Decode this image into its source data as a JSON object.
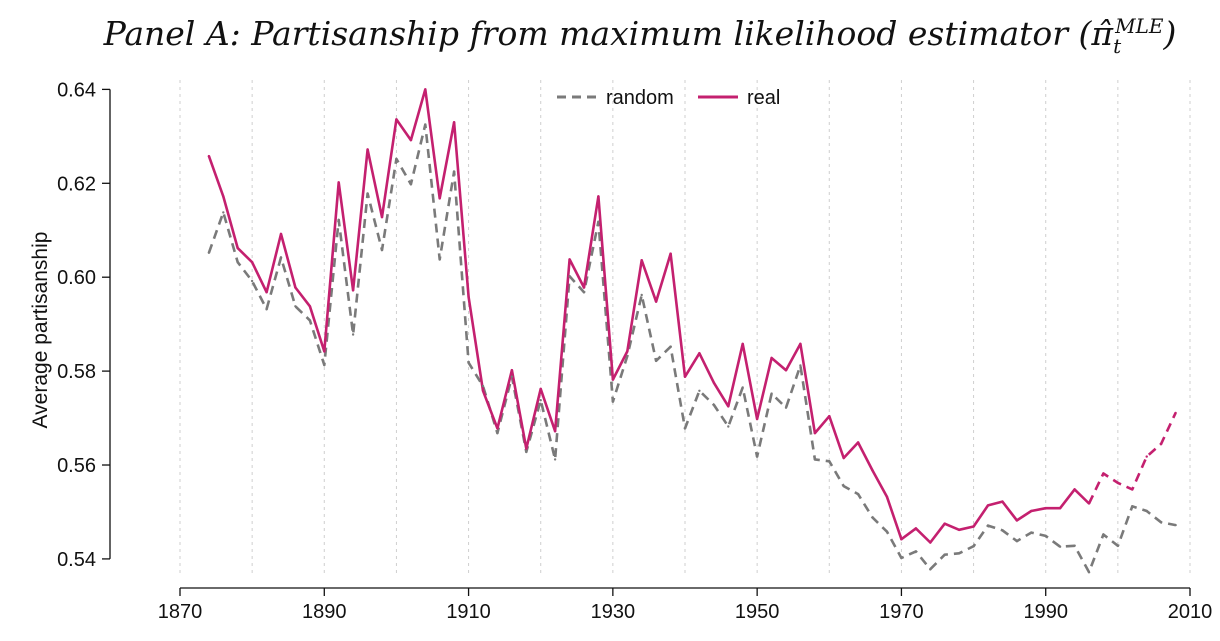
{
  "chart_data": {
    "type": "line",
    "title": "Panel A: Partisanship from maximum likelihood estimator (",
    "title_symbol": "π̂",
    "title_sub": "t",
    "title_sup": "MLE",
    "title_close": ")",
    "xlabel": "",
    "ylabel": "Average partisanship",
    "xlim": [
      1870,
      2010
    ],
    "ylim": [
      0.537,
      0.642
    ],
    "xticks": [
      1870,
      1890,
      1910,
      1930,
      1950,
      1970,
      1990,
      2010
    ],
    "yticks": [
      0.54,
      0.56,
      0.58,
      0.6,
      0.62,
      0.64
    ],
    "ytick_labels": [
      "0.54",
      "0.56",
      "0.58",
      "0.60",
      "0.62",
      "0.64"
    ],
    "vgrid": [
      1870,
      1880,
      1890,
      1900,
      1910,
      1920,
      1930,
      1940,
      1950,
      1960,
      1970,
      1980,
      1990,
      2000,
      2010
    ],
    "grid": "vertical-dotted",
    "legend_position": "top-center",
    "x": [
      1874,
      1876,
      1878,
      1880,
      1882,
      1884,
      1886,
      1888,
      1890,
      1892,
      1894,
      1896,
      1898,
      1900,
      1902,
      1904,
      1906,
      1908,
      1910,
      1912,
      1914,
      1916,
      1918,
      1920,
      1922,
      1924,
      1926,
      1928,
      1930,
      1932,
      1934,
      1936,
      1938,
      1940,
      1942,
      1944,
      1946,
      1948,
      1950,
      1952,
      1954,
      1956,
      1958,
      1960,
      1962,
      1964,
      1966,
      1968,
      1970,
      1972,
      1974,
      1976,
      1978,
      1980,
      1982,
      1984,
      1986,
      1988,
      1990,
      1992,
      1994,
      1996,
      1998,
      2000,
      2002,
      2004,
      2006,
      2008
    ],
    "series": [
      {
        "name": "random",
        "color": "#7a7a7a",
        "style": "dashed",
        "values": [
          0.6052,
          0.6138,
          0.6032,
          0.5992,
          0.5932,
          0.6042,
          0.5938,
          0.5908,
          0.5813,
          0.6122,
          0.5878,
          0.6178,
          0.6058,
          0.6252,
          0.6198,
          0.6325,
          0.6038,
          0.6225,
          0.5818,
          0.5768,
          0.5668,
          0.5788,
          0.5628,
          0.5738,
          0.5612,
          0.6002,
          0.5968,
          0.6118,
          0.5735,
          0.5832,
          0.5962,
          0.5822,
          0.5852,
          0.5678,
          0.5758,
          0.5728,
          0.5682,
          0.5765,
          0.5618,
          0.5752,
          0.5722,
          0.5812,
          0.5612,
          0.5608,
          0.5555,
          0.5538,
          0.5488,
          0.5458,
          0.5402,
          0.5416,
          0.5378,
          0.5409,
          0.5412,
          0.5427,
          0.5471,
          0.5461,
          0.5438,
          0.5456,
          0.5449,
          0.5426,
          0.5428,
          0.5372,
          0.5452,
          0.5428,
          0.5512,
          0.5502,
          0.5478,
          0.5472
        ]
      },
      {
        "name": "real",
        "color": "#c4206f",
        "style": "solid",
        "dashed_from": 1996,
        "values": [
          0.6258,
          0.6172,
          0.6062,
          0.6032,
          0.5968,
          0.6092,
          0.5978,
          0.5938,
          0.5842,
          0.6202,
          0.5972,
          0.6272,
          0.6128,
          0.6336,
          0.6292,
          0.64,
          0.6168,
          0.633,
          0.5958,
          0.5758,
          0.5678,
          0.5802,
          0.5635,
          0.5762,
          0.5672,
          0.6038,
          0.5978,
          0.6172,
          0.5782,
          0.5842,
          0.6036,
          0.5948,
          0.605,
          0.5788,
          0.5838,
          0.5775,
          0.5725,
          0.5858,
          0.5698,
          0.5828,
          0.5802,
          0.5858,
          0.5668,
          0.5704,
          0.5615,
          0.5648,
          0.5588,
          0.5532,
          0.5442,
          0.5465,
          0.5435,
          0.5475,
          0.5462,
          0.5469,
          0.5514,
          0.5522,
          0.5482,
          0.5502,
          0.5508,
          0.5508,
          0.5548,
          0.5518,
          0.5582,
          0.5562,
          0.5548,
          0.5618,
          0.5645,
          0.5711
        ]
      }
    ]
  }
}
